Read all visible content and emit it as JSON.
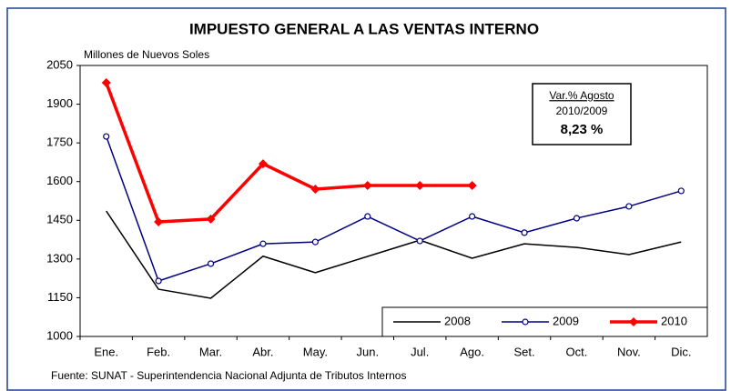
{
  "chart_data": {
    "type": "line",
    "title": "IMPUESTO GENERAL A LAS VENTAS INTERNO",
    "y_label": "Millones de Nuevos Soles",
    "source": "Fuente: SUNAT - Superintendencia Nacional Adjunta de Tributos Internos",
    "annotation": {
      "title": "Var.% Agosto",
      "subtitle": "2010/2009",
      "value": "8,23 %"
    },
    "categories": [
      "Ene.",
      "Feb.",
      "Mar.",
      "Abr.",
      "May.",
      "Jun.",
      "Jul.",
      "Ago.",
      "Set.",
      "Oct.",
      "Nov.",
      "Dic."
    ],
    "series": [
      {
        "name": "2008",
        "color": "#000000",
        "marker": "none",
        "values": [
          1486,
          1183,
          1148,
          1311,
          1247,
          1310,
          1373,
          1303,
          1359,
          1345,
          1317,
          1366
        ]
      },
      {
        "name": "2009",
        "color": "#000080",
        "marker": "circle",
        "values": [
          1775,
          1215,
          1282,
          1359,
          1366,
          1465,
          1370,
          1465,
          1402,
          1458,
          1504,
          1564
        ]
      },
      {
        "name": "2010",
        "color": "#ff0000",
        "marker": "diamond",
        "values": [
          1983,
          1444,
          1455,
          1669,
          1571,
          1585,
          1585,
          1585,
          null,
          null,
          null,
          null
        ]
      }
    ],
    "ylim": [
      1000,
      2050
    ],
    "yticks": [
      1000,
      1150,
      1300,
      1450,
      1600,
      1750,
      1900,
      2050
    ],
    "grid": false,
    "legend": "bottom-right"
  }
}
